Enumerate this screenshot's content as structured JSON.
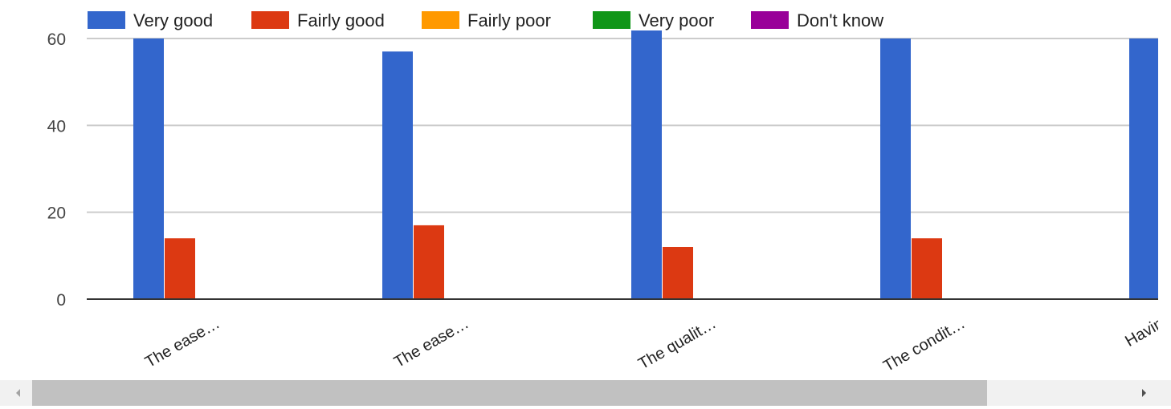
{
  "chart_data": {
    "type": "bar",
    "categories": [
      "The ease…",
      "The ease…",
      "The qualit…",
      "The condit…",
      "Havin"
    ],
    "series": [
      {
        "name": "Very good",
        "color": "#3366cc",
        "values": [
          60,
          57,
          62,
          60,
          60
        ]
      },
      {
        "name": "Fairly good",
        "color": "#dc3912",
        "values": [
          14,
          17,
          12,
          14,
          0
        ]
      },
      {
        "name": "Fairly poor",
        "color": "#ff9900",
        "values": [
          0,
          0,
          0,
          0,
          0
        ]
      },
      {
        "name": "Very poor",
        "color": "#109618",
        "values": [
          0,
          0,
          0,
          0,
          0
        ]
      },
      {
        "name": "Don't know",
        "color": "#990099",
        "values": [
          0,
          0,
          0,
          0,
          0
        ]
      }
    ],
    "y_ticks": [
      "0",
      "20",
      "40",
      "60"
    ],
    "ylim": [
      0,
      60
    ],
    "grid": true,
    "legend_position": "top",
    "title": "",
    "xlabel": "",
    "ylabel": ""
  },
  "colors": {
    "gridline": "#cccccc",
    "baseline": "#333333",
    "scroll_track": "#f1f1f1",
    "scroll_thumb": "#c1c1c1"
  }
}
